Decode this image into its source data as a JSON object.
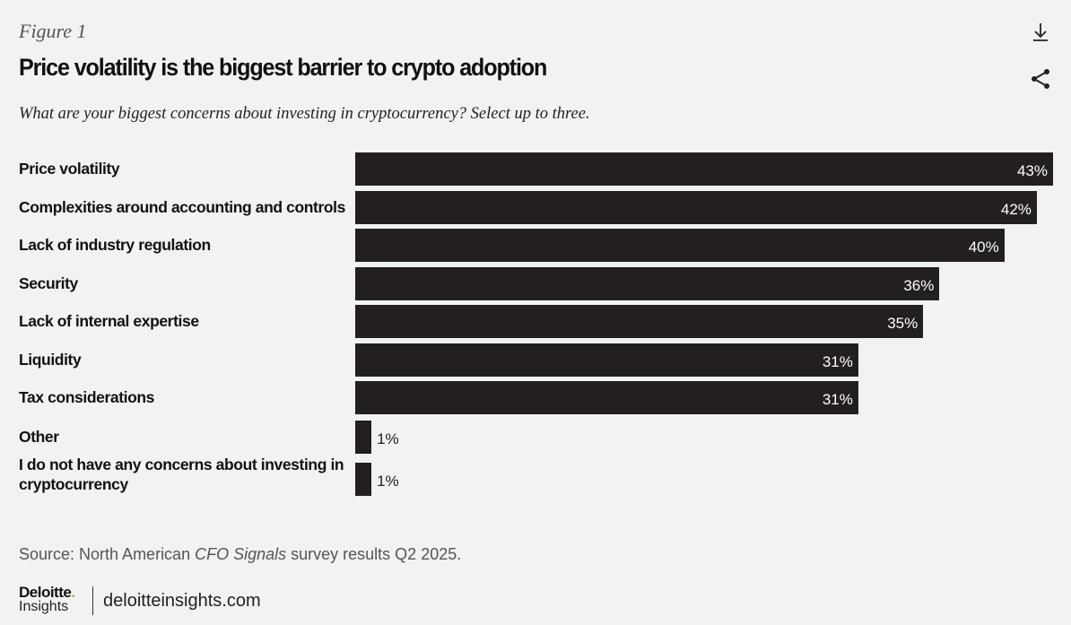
{
  "figure_label": "Figure 1",
  "icons": {
    "download": "download-icon",
    "share": "share-icon"
  },
  "chart_data": {
    "type": "bar",
    "orientation": "horizontal",
    "title": "Price volatility is the biggest barrier to crypto adoption",
    "subtitle": "What are your biggest concerns about investing in cryptocurrency? Select up to three.",
    "categories": [
      "Price volatility",
      "Complexities around accounting and controls",
      "Lack of industry regulation",
      "Security",
      "Lack of internal expertise",
      "Liquidity",
      "Tax considerations",
      "Other",
      "I do not have any concerns about investing in cryptocurrency"
    ],
    "values": [
      43,
      42,
      40,
      36,
      35,
      31,
      31,
      1,
      1
    ],
    "value_labels": [
      "43%",
      "42%",
      "40%",
      "36%",
      "35%",
      "31%",
      "31%",
      "1%",
      "1%"
    ],
    "unit": "%",
    "bar_color": "#231f20",
    "background": "#f2f2f2",
    "grid": false
  },
  "source": {
    "prefix": "Source: North American ",
    "italic": "CFO Signals",
    "suffix": " survey results Q2 2025."
  },
  "footer": {
    "brand": "Deloitte",
    "brand_dot": ".",
    "brand_sub": "Insights",
    "url": "deloitteinsights.com"
  }
}
